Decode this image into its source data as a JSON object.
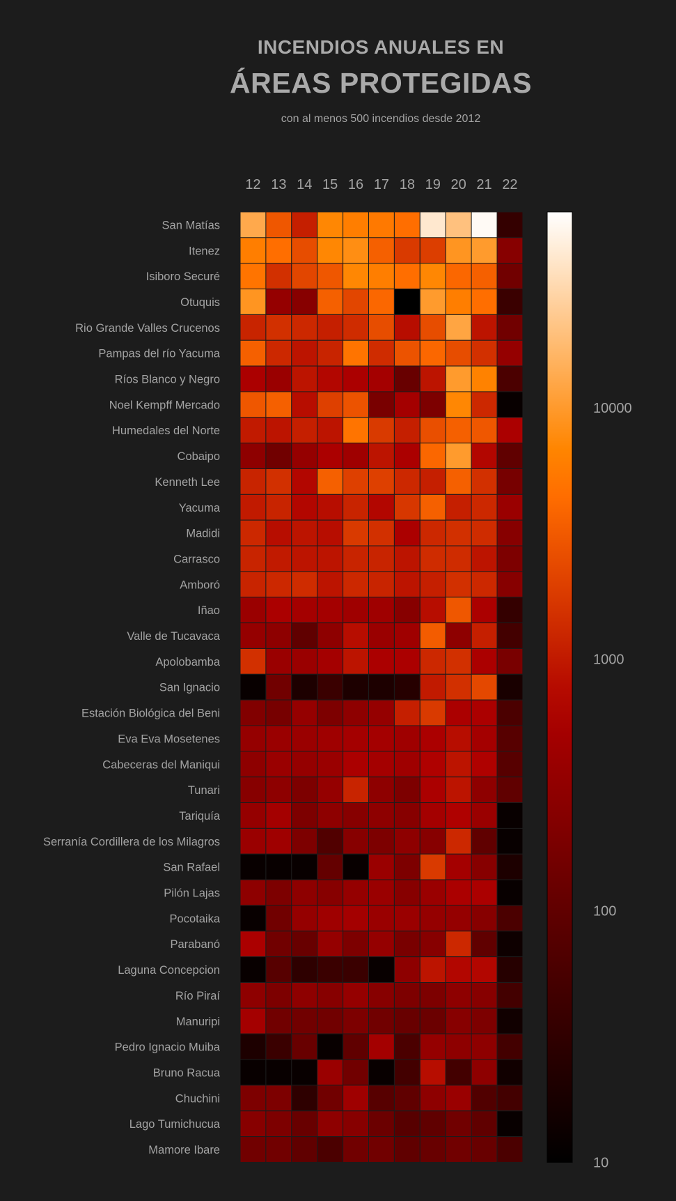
{
  "title_line1": "INCENDIOS ANUALES EN",
  "title_line2": "ÁREAS PROTEGIDAS",
  "subtitle": "con al menos 500 incendios desde 2012",
  "chart_data": {
    "type": "heatmap",
    "scale": "log",
    "colormap": "black-red-orange-white (gist_heat-like)",
    "x": [
      "12",
      "13",
      "14",
      "15",
      "16",
      "17",
      "18",
      "19",
      "20",
      "21",
      "22"
    ],
    "y": [
      "San Matías",
      "Itenez",
      "Isiboro Securé",
      "Otuquis",
      "Rio Grande Valles Crucenos",
      "Pampas del río Yacuma",
      "Ríos Blanco y Negro",
      "Noel Kempff Mercado",
      "Humedales del Norte",
      "Cobaipo",
      "Kenneth Lee",
      "Yacuma",
      "Madidi",
      "Carrasco",
      "Amboró",
      "Iñao",
      "Valle de Tucavaca",
      "Apolobamba",
      "San Ignacio",
      "Estación Biológica del Beni",
      "Eva Eva Mosetenes",
      "Cabeceras del Maniqui",
      "Tunari",
      "Tariquía",
      "Serranía Cordillera de los Milagros",
      "San Rafael",
      "Pilón Lajas",
      "Pocotaika",
      "Parabanó",
      "Laguna Concepcion",
      "Río Piraí",
      "Manuripi",
      "Pedro Ignacio Muiba",
      "Bruno Racua",
      "Chuchini",
      "Lago Tumichucua",
      "Mamore Ibare"
    ],
    "values": [
      [
        13000,
        3000,
        1100,
        7000,
        6000,
        5500,
        4500,
        40000,
        20000,
        55000,
        35
      ],
      [
        6000,
        4500,
        2500,
        7000,
        8000,
        3500,
        1800,
        1900,
        9000,
        10000,
        250
      ],
      [
        5000,
        1500,
        2200,
        3000,
        7000,
        6000,
        4500,
        7000,
        4000,
        3500,
        150
      ],
      [
        9000,
        350,
        250,
        3500,
        2200,
        4000,
        10,
        10000,
        6000,
        4500,
        40
      ],
      [
        1200,
        1500,
        1300,
        1100,
        1400,
        2500,
        800,
        2500,
        12000,
        900,
        150
      ],
      [
        3500,
        1300,
        900,
        1200,
        5000,
        1400,
        2800,
        4000,
        2500,
        1500,
        350
      ],
      [
        600,
        400,
        900,
        700,
        600,
        500,
        120,
        900,
        10000,
        6500,
        60
      ],
      [
        3000,
        3500,
        800,
        2000,
        2800,
        180,
        500,
        200,
        7000,
        1300,
        12
      ],
      [
        1000,
        900,
        1100,
        900,
        5000,
        1800,
        1100,
        2600,
        3500,
        3000,
        600
      ],
      [
        300,
        150,
        350,
        600,
        450,
        900,
        600,
        4000,
        10000,
        700,
        100
      ],
      [
        1200,
        1500,
        700,
        3500,
        2000,
        2000,
        1300,
        1100,
        3500,
        1500,
        170
      ],
      [
        1000,
        1200,
        700,
        800,
        1200,
        700,
        1700,
        3500,
        1100,
        1300,
        400
      ],
      [
        1300,
        800,
        900,
        800,
        1800,
        1500,
        600,
        1300,
        1500,
        1400,
        250
      ],
      [
        1200,
        1000,
        900,
        900,
        1200,
        1200,
        900,
        1400,
        1400,
        900,
        200
      ],
      [
        1200,
        1300,
        1400,
        900,
        1300,
        1200,
        900,
        1100,
        1500,
        1300,
        250
      ],
      [
        400,
        600,
        500,
        500,
        450,
        450,
        250,
        800,
        3000,
        600,
        35
      ],
      [
        350,
        300,
        100,
        300,
        800,
        400,
        450,
        3300,
        300,
        1100,
        50
      ],
      [
        1500,
        400,
        400,
        500,
        900,
        600,
        600,
        1300,
        1500,
        600,
        180
      ],
      [
        12,
        150,
        20,
        40,
        20,
        20,
        25,
        1000,
        1500,
        2300,
        18
      ],
      [
        220,
        170,
        350,
        200,
        300,
        350,
        1100,
        1800,
        600,
        600,
        60
      ],
      [
        350,
        400,
        400,
        450,
        500,
        500,
        450,
        600,
        800,
        500,
        80
      ],
      [
        300,
        400,
        350,
        400,
        600,
        500,
        450,
        650,
        900,
        650,
        80
      ],
      [
        250,
        300,
        200,
        350,
        1200,
        300,
        200,
        600,
        900,
        300,
        100
      ],
      [
        350,
        500,
        200,
        300,
        250,
        300,
        250,
        500,
        650,
        400,
        12
      ],
      [
        400,
        450,
        200,
        70,
        250,
        200,
        300,
        250,
        1300,
        100,
        12
      ],
      [
        12,
        12,
        12,
        110,
        12,
        400,
        200,
        1800,
        500,
        250,
        20
      ],
      [
        300,
        200,
        300,
        250,
        350,
        400,
        250,
        400,
        600,
        600,
        12
      ],
      [
        12,
        150,
        350,
        450,
        500,
        400,
        400,
        350,
        350,
        250,
        60
      ],
      [
        600,
        150,
        120,
        350,
        200,
        350,
        180,
        250,
        1300,
        100,
        14
      ],
      [
        12,
        80,
        30,
        40,
        40,
        12,
        300,
        900,
        700,
        700,
        25
      ],
      [
        300,
        200,
        300,
        250,
        350,
        250,
        200,
        200,
        300,
        250,
        50
      ],
      [
        500,
        150,
        150,
        150,
        200,
        150,
        120,
        130,
        250,
        200,
        15
      ],
      [
        20,
        40,
        120,
        12,
        100,
        500,
        60,
        350,
        300,
        300,
        50
      ],
      [
        12,
        12,
        12,
        400,
        150,
        12,
        50,
        800,
        50,
        300,
        15
      ],
      [
        200,
        200,
        30,
        150,
        450,
        80,
        100,
        300,
        400,
        70,
        50
      ],
      [
        250,
        200,
        120,
        300,
        250,
        130,
        80,
        100,
        150,
        100,
        12
      ],
      [
        150,
        150,
        100,
        60,
        150,
        150,
        100,
        120,
        150,
        120,
        60
      ]
    ],
    "colorbar": {
      "ticks": [
        "10",
        "100",
        "1000",
        "10000"
      ],
      "range": [
        10,
        60000
      ]
    }
  }
}
